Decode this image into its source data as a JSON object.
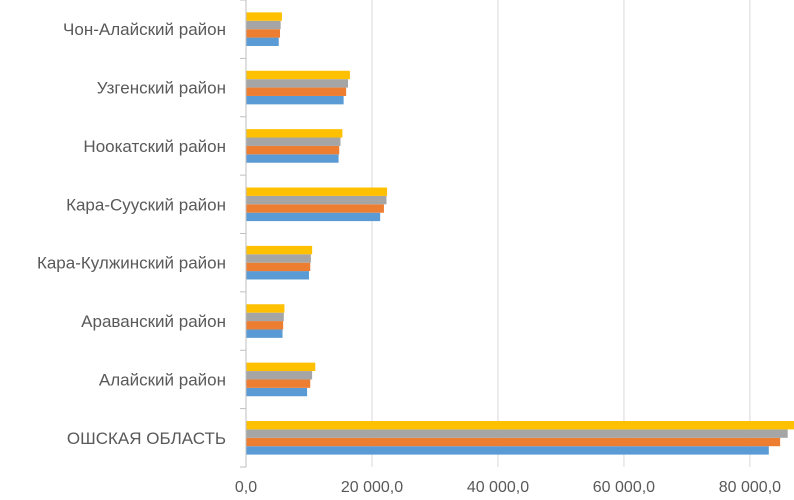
{
  "chart_data": {
    "type": "bar",
    "orientation": "horizontal",
    "categories": [
      "Чон-Алайский район",
      "Узгенский район",
      "Ноокатский район",
      "Кара-Сууский район",
      "Кара-Кулжинский район",
      "Араванский район",
      "Алайский район",
      "ОШСКАЯ ОБЛАСТЬ"
    ],
    "series": [
      {
        "color": "#5B9BD5",
        "values": [
          5200,
          15500,
          14700,
          21300,
          10000,
          5800,
          9700,
          83000
        ]
      },
      {
        "color": "#ED7D31",
        "values": [
          5400,
          15900,
          14800,
          21900,
          10200,
          5900,
          10200,
          84800
        ]
      },
      {
        "color": "#A5A5A5",
        "values": [
          5500,
          16200,
          15000,
          22300,
          10300,
          6000,
          10500,
          86000
        ]
      },
      {
        "color": "#FFC000",
        "values": [
          5700,
          16500,
          15300,
          22400,
          10500,
          6100,
          11000,
          87000
        ]
      }
    ],
    "x_ticks": [
      "0,0",
      "20 000,0",
      "40 000,0",
      "60 000,0",
      "80 000,0"
    ],
    "x_tick_values": [
      0,
      20000,
      40000,
      60000,
      80000
    ],
    "xlim": [
      0,
      87000
    ],
    "grid": true,
    "gridline_color": "#D9D9D9",
    "axis_color": "#BFBFBF",
    "title": "",
    "xlabel": "",
    "ylabel": ""
  }
}
